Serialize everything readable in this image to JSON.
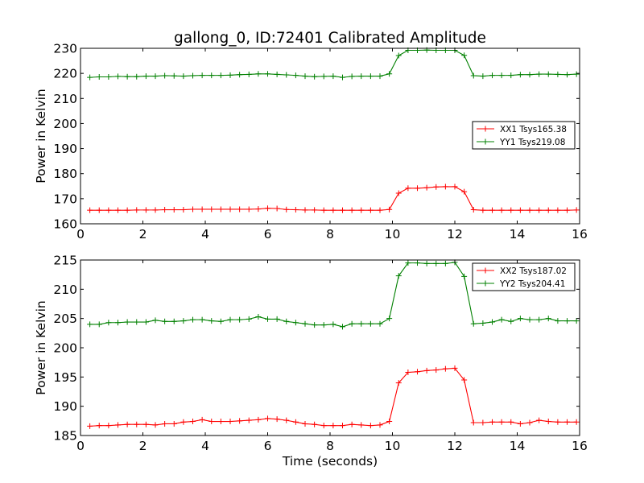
{
  "title": "gallong_0, ID:72401 Calibrated Amplitude",
  "chart_data": [
    {
      "type": "line",
      "title": "gallong_0, ID:72401 Calibrated Amplitude",
      "xlabel": "",
      "ylabel": "Power in Kelvin",
      "xlim": [
        0,
        16
      ],
      "ylim": [
        160,
        230
      ],
      "xticks": [
        0,
        2,
        4,
        6,
        8,
        10,
        12,
        14,
        16
      ],
      "yticks": [
        160,
        170,
        180,
        190,
        200,
        210,
        220,
        230
      ],
      "xtick_labels": [
        "0",
        "2",
        "4",
        "6",
        "8",
        "10",
        "12",
        "14",
        "16"
      ],
      "ytick_labels": [
        "160",
        "170",
        "180",
        "190",
        "200",
        "210",
        "220",
        "230"
      ],
      "grid": false,
      "legend_position": "center-right",
      "x": [
        0.3,
        0.6,
        0.9,
        1.2,
        1.5,
        1.8,
        2.1,
        2.4,
        2.7,
        3.0,
        3.3,
        3.6,
        3.9,
        4.2,
        4.5,
        4.8,
        5.1,
        5.4,
        5.7,
        6.0,
        6.3,
        6.6,
        6.9,
        7.2,
        7.5,
        7.8,
        8.1,
        8.4,
        8.7,
        9.0,
        9.3,
        9.6,
        9.9,
        10.2,
        10.5,
        10.8,
        11.1,
        11.4,
        11.7,
        12.0,
        12.3,
        12.6,
        12.9,
        13.2,
        13.5,
        13.8,
        14.1,
        14.4,
        14.7,
        15.0,
        15.3,
        15.6,
        15.9
      ],
      "series": [
        {
          "name": "XX1 Tsys165.38",
          "color": "#ff0000",
          "values": [
            165.4,
            165.4,
            165.4,
            165.4,
            165.4,
            165.5,
            165.5,
            165.5,
            165.6,
            165.6,
            165.6,
            165.8,
            165.8,
            165.8,
            165.8,
            165.8,
            165.8,
            165.8,
            165.9,
            166.2,
            166.1,
            165.7,
            165.6,
            165.5,
            165.5,
            165.4,
            165.4,
            165.4,
            165.4,
            165.4,
            165.4,
            165.4,
            165.7,
            172.2,
            174.2,
            174.2,
            174.4,
            174.7,
            174.8,
            174.8,
            172.8,
            165.6,
            165.4,
            165.4,
            165.4,
            165.4,
            165.4,
            165.4,
            165.4,
            165.4,
            165.4,
            165.4,
            165.5
          ]
        },
        {
          "name": "YY1 Tsys219.08",
          "color": "#008000",
          "values": [
            218.4,
            218.6,
            218.6,
            218.8,
            218.7,
            218.7,
            218.9,
            218.9,
            219.1,
            219.0,
            218.9,
            219.1,
            219.2,
            219.2,
            219.2,
            219.3,
            219.5,
            219.6,
            219.8,
            219.8,
            219.6,
            219.4,
            219.2,
            218.9,
            218.7,
            218.8,
            218.9,
            218.4,
            218.8,
            218.9,
            218.9,
            218.9,
            219.8,
            227.1,
            229.2,
            229.2,
            229.3,
            229.2,
            229.2,
            229.2,
            227.2,
            219.1,
            218.9,
            219.2,
            219.2,
            219.2,
            219.5,
            219.5,
            219.7,
            219.7,
            219.6,
            219.5,
            219.7
          ]
        }
      ]
    },
    {
      "type": "line",
      "title": "",
      "xlabel": "Time (seconds)",
      "ylabel": "Power in Kelvin",
      "xlim": [
        0,
        16
      ],
      "ylim": [
        185,
        215
      ],
      "xticks": [
        0,
        2,
        4,
        6,
        8,
        10,
        12,
        14,
        16
      ],
      "yticks": [
        185,
        190,
        195,
        200,
        205,
        210,
        215
      ],
      "xtick_labels": [
        "0",
        "2",
        "4",
        "6",
        "8",
        "10",
        "12",
        "14",
        "16"
      ],
      "ytick_labels": [
        "185",
        "190",
        "195",
        "200",
        "205",
        "210",
        "215"
      ],
      "grid": false,
      "legend_position": "top-right",
      "x": [
        0.3,
        0.6,
        0.9,
        1.2,
        1.5,
        1.8,
        2.1,
        2.4,
        2.7,
        3.0,
        3.3,
        3.6,
        3.9,
        4.2,
        4.5,
        4.8,
        5.1,
        5.4,
        5.7,
        6.0,
        6.3,
        6.6,
        6.9,
        7.2,
        7.5,
        7.8,
        8.1,
        8.4,
        8.7,
        9.0,
        9.3,
        9.6,
        9.9,
        10.2,
        10.5,
        10.8,
        11.1,
        11.4,
        11.7,
        12.0,
        12.3,
        12.6,
        12.9,
        13.2,
        13.5,
        13.8,
        14.1,
        14.4,
        14.7,
        15.0,
        15.3,
        15.6,
        15.9
      ],
      "series": [
        {
          "name": "XX2 Tsys187.02",
          "color": "#ff0000",
          "values": [
            186.6,
            186.7,
            186.7,
            186.8,
            186.9,
            186.9,
            186.9,
            186.8,
            187.0,
            187.0,
            187.3,
            187.4,
            187.7,
            187.4,
            187.4,
            187.4,
            187.5,
            187.6,
            187.7,
            187.9,
            187.8,
            187.6,
            187.3,
            187.0,
            186.9,
            186.7,
            186.7,
            186.7,
            186.9,
            186.8,
            186.7,
            186.8,
            187.4,
            194.0,
            195.8,
            195.9,
            196.1,
            196.2,
            196.4,
            196.5,
            194.5,
            187.2,
            187.2,
            187.3,
            187.3,
            187.3,
            187.0,
            187.2,
            187.6,
            187.4,
            187.3,
            187.3,
            187.3
          ]
        },
        {
          "name": "YY2 Tsys204.41",
          "color": "#008000",
          "values": [
            204.0,
            204.0,
            204.3,
            204.3,
            204.4,
            204.4,
            204.4,
            204.7,
            204.5,
            204.5,
            204.6,
            204.8,
            204.8,
            204.6,
            204.5,
            204.8,
            204.8,
            204.9,
            205.3,
            204.9,
            204.9,
            204.5,
            204.3,
            204.1,
            203.9,
            203.9,
            204.0,
            203.6,
            204.1,
            204.1,
            204.1,
            204.1,
            205.0,
            212.3,
            214.5,
            214.5,
            214.4,
            214.4,
            214.4,
            214.6,
            212.2,
            204.1,
            204.2,
            204.4,
            204.8,
            204.5,
            205.0,
            204.8,
            204.8,
            205.0,
            204.6,
            204.6,
            204.6
          ]
        }
      ]
    }
  ]
}
